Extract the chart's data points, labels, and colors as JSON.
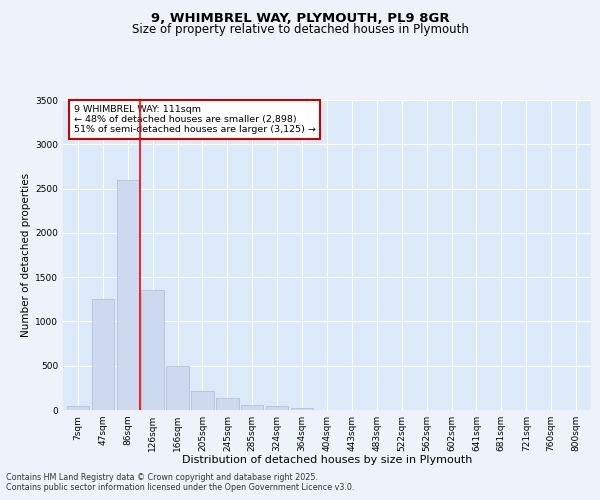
{
  "title_line1": "9, WHIMBREL WAY, PLYMOUTH, PL9 8GR",
  "title_line2": "Size of property relative to detached houses in Plymouth",
  "xlabel": "Distribution of detached houses by size in Plymouth",
  "ylabel": "Number of detached properties",
  "categories": [
    "7sqm",
    "47sqm",
    "86sqm",
    "126sqm",
    "166sqm",
    "205sqm",
    "245sqm",
    "285sqm",
    "324sqm",
    "364sqm",
    "404sqm",
    "443sqm",
    "483sqm",
    "522sqm",
    "562sqm",
    "602sqm",
    "641sqm",
    "681sqm",
    "721sqm",
    "760sqm",
    "800sqm"
  ],
  "values": [
    50,
    1250,
    2600,
    1350,
    500,
    215,
    135,
    55,
    40,
    20,
    5,
    3,
    2,
    1,
    1,
    0,
    0,
    0,
    0,
    0,
    0
  ],
  "bar_color": "#ccd9ee",
  "bar_edge_color": "#aabbd4",
  "red_line_x": 2.5,
  "annotation_text": "9 WHIMBREL WAY: 111sqm\n← 48% of detached houses are smaller (2,898)\n51% of semi-detached houses are larger (3,125) →",
  "annotation_box_color": "#ffffff",
  "annotation_box_edge": "#cc0000",
  "ylim": [
    0,
    3500
  ],
  "yticks": [
    0,
    500,
    1000,
    1500,
    2000,
    2500,
    3000,
    3500
  ],
  "fig_background": "#eef3fb",
  "ax_background": "#dce9f8",
  "grid_color": "#ffffff",
  "footer_line1": "Contains HM Land Registry data © Crown copyright and database right 2025.",
  "footer_line2": "Contains public sector information licensed under the Open Government Licence v3.0.",
  "title_fontsize": 9.5,
  "subtitle_fontsize": 8.5,
  "tick_fontsize": 6.5,
  "xlabel_fontsize": 8,
  "ylabel_fontsize": 7.5,
  "annotation_fontsize": 6.8,
  "footer_fontsize": 5.8
}
